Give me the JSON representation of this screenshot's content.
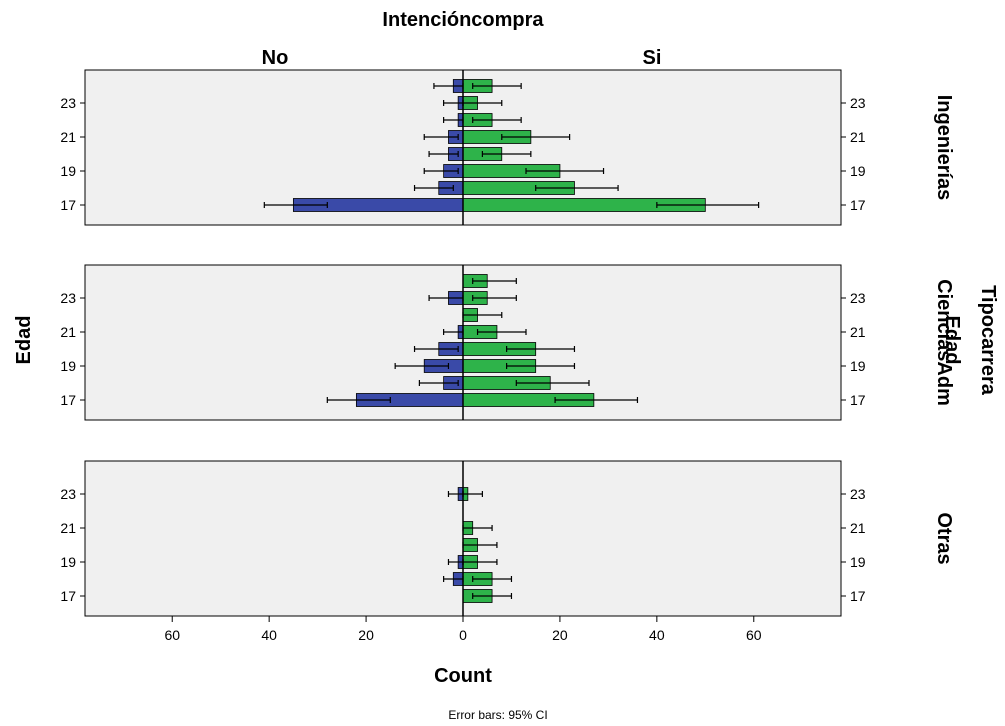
{
  "chart_data": {
    "type": "bar",
    "orientation": "horizontal-population-pyramid",
    "title": "Intencióncompra",
    "left_group": "No",
    "right_group": "Si",
    "xlabel": "Count",
    "ylabel": "Edad",
    "right_ylabel": "Edad",
    "facet_variable": "Tipocarrera",
    "footnote": "Error bars: 95% CI",
    "xlim": [
      -78,
      78
    ],
    "x_ticks": [
      {
        "value": -60,
        "label": "60"
      },
      {
        "value": -40,
        "label": "40"
      },
      {
        "value": -20,
        "label": "20"
      },
      {
        "value": 0,
        "label": "0"
      },
      {
        "value": 20,
        "label": "20"
      },
      {
        "value": 40,
        "label": "40"
      },
      {
        "value": 60,
        "label": "60"
      }
    ],
    "age_rows": [
      24,
      23,
      22,
      21,
      20,
      19,
      18,
      17
    ],
    "y_tick_labels": [
      "23",
      "21",
      "19",
      "17"
    ],
    "colors": {
      "No": "#3a4aa8",
      "Si": "#2eb34a",
      "panel_bg": "#f0f0f0"
    },
    "panels": [
      {
        "name": "Ingenierías",
        "bars": [
          {
            "age": 24,
            "no": 2,
            "si": 6
          },
          {
            "age": 23,
            "no": 1,
            "si": 3
          },
          {
            "age": 22,
            "no": 1,
            "si": 6
          },
          {
            "age": 21,
            "no": 3,
            "si": 14
          },
          {
            "age": 20,
            "no": 3,
            "si": 8
          },
          {
            "age": 19,
            "no": 4,
            "si": 20
          },
          {
            "age": 18,
            "no": 5,
            "si": 23
          },
          {
            "age": 17,
            "no": 35,
            "si": 50
          }
        ],
        "error_bars": [
          {
            "age": 24,
            "group": "No",
            "low": 0,
            "high": 6
          },
          {
            "age": 24,
            "group": "Si",
            "low": 2,
            "high": 12
          },
          {
            "age": 23,
            "group": "No",
            "low": 0,
            "high": 4
          },
          {
            "age": 23,
            "group": "Si",
            "low": 0,
            "high": 8
          },
          {
            "age": 22,
            "group": "No",
            "low": 0,
            "high": 4
          },
          {
            "age": 22,
            "group": "Si",
            "low": 2,
            "high": 12
          },
          {
            "age": 21,
            "group": "No",
            "low": 1,
            "high": 8
          },
          {
            "age": 21,
            "group": "Si",
            "low": 8,
            "high": 22
          },
          {
            "age": 20,
            "group": "No",
            "low": 1,
            "high": 7
          },
          {
            "age": 20,
            "group": "Si",
            "low": 4,
            "high": 14
          },
          {
            "age": 19,
            "group": "No",
            "low": 1,
            "high": 8
          },
          {
            "age": 19,
            "group": "Si",
            "low": 13,
            "high": 29
          },
          {
            "age": 18,
            "group": "No",
            "low": 2,
            "high": 10
          },
          {
            "age": 18,
            "group": "Si",
            "low": 15,
            "high": 32
          },
          {
            "age": 17,
            "group": "No",
            "low": 28,
            "high": 41
          },
          {
            "age": 17,
            "group": "Si",
            "low": 40,
            "high": 61
          }
        ]
      },
      {
        "name": "CienciasAdm",
        "bars": [
          {
            "age": 24,
            "no": 0,
            "si": 5
          },
          {
            "age": 23,
            "no": 3,
            "si": 5
          },
          {
            "age": 22,
            "no": 0,
            "si": 3
          },
          {
            "age": 21,
            "no": 1,
            "si": 7
          },
          {
            "age": 20,
            "no": 5,
            "si": 15
          },
          {
            "age": 19,
            "no": 8,
            "si": 15
          },
          {
            "age": 18,
            "no": 4,
            "si": 18
          },
          {
            "age": 17,
            "no": 22,
            "si": 27
          }
        ],
        "error_bars": [
          {
            "age": 24,
            "group": "Si",
            "low": 2,
            "high": 11
          },
          {
            "age": 23,
            "group": "No",
            "low": 0,
            "high": 7
          },
          {
            "age": 23,
            "group": "Si",
            "low": 2,
            "high": 11
          },
          {
            "age": 22,
            "group": "Si",
            "low": 0,
            "high": 8
          },
          {
            "age": 21,
            "group": "No",
            "low": 0,
            "high": 4
          },
          {
            "age": 21,
            "group": "Si",
            "low": 3,
            "high": 13
          },
          {
            "age": 20,
            "group": "No",
            "low": 1,
            "high": 10
          },
          {
            "age": 20,
            "group": "Si",
            "low": 9,
            "high": 23
          },
          {
            "age": 19,
            "group": "No",
            "low": 3,
            "high": 14
          },
          {
            "age": 19,
            "group": "Si",
            "low": 9,
            "high": 23
          },
          {
            "age": 18,
            "group": "No",
            "low": 1,
            "high": 9
          },
          {
            "age": 18,
            "group": "Si",
            "low": 11,
            "high": 26
          },
          {
            "age": 17,
            "group": "No",
            "low": 15,
            "high": 28
          },
          {
            "age": 17,
            "group": "Si",
            "low": 19,
            "high": 36
          }
        ]
      },
      {
        "name": "Otras",
        "bars": [
          {
            "age": 24,
            "no": 0,
            "si": 0
          },
          {
            "age": 23,
            "no": 1,
            "si": 1
          },
          {
            "age": 22,
            "no": 0,
            "si": 0
          },
          {
            "age": 21,
            "no": 0,
            "si": 2
          },
          {
            "age": 20,
            "no": 0,
            "si": 3
          },
          {
            "age": 19,
            "no": 1,
            "si": 3
          },
          {
            "age": 18,
            "no": 2,
            "si": 6
          },
          {
            "age": 17,
            "no": 0,
            "si": 6
          }
        ],
        "error_bars": [
          {
            "age": 23,
            "group": "No",
            "low": 0,
            "high": 3
          },
          {
            "age": 23,
            "group": "Si",
            "low": 0,
            "high": 4
          },
          {
            "age": 21,
            "group": "Si",
            "low": 0,
            "high": 6
          },
          {
            "age": 20,
            "group": "Si",
            "low": 0,
            "high": 7
          },
          {
            "age": 19,
            "group": "No",
            "low": 0,
            "high": 3
          },
          {
            "age": 19,
            "group": "Si",
            "low": 0,
            "high": 7
          },
          {
            "age": 18,
            "group": "No",
            "low": 0,
            "high": 4
          },
          {
            "age": 18,
            "group": "Si",
            "low": 2,
            "high": 10
          },
          {
            "age": 17,
            "group": "Si",
            "low": 2,
            "high": 10
          }
        ]
      }
    ]
  }
}
